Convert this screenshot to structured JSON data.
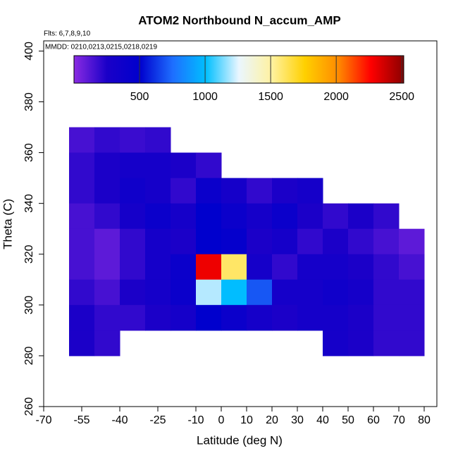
{
  "chart_data": {
    "type": "heatmap",
    "title": "ATOM2 Northbound N_accum_AMP",
    "subtitle": "Flts: 6,7,8,9,10",
    "annotation": "MMDD: 0210,0213,0215,0218,0219",
    "x_label": "Latitude (deg N)",
    "y_label": "Theta (C)",
    "x": [
      -55,
      -45,
      -35,
      -25,
      -15,
      -5,
      5,
      15,
      25,
      35,
      45,
      55,
      65,
      75
    ],
    "y": [
      365,
      355,
      345,
      335,
      325,
      315,
      305,
      295,
      285
    ],
    "z": [
      [
        150,
        200,
        180,
        200,
        null,
        null,
        null,
        null,
        null,
        null,
        null,
        null,
        null,
        null
      ],
      [
        200,
        250,
        300,
        300,
        250,
        200,
        null,
        null,
        null,
        null,
        null,
        null,
        null,
        null
      ],
      [
        200,
        250,
        350,
        300,
        200,
        400,
        300,
        200,
        250,
        300,
        null,
        null,
        null,
        null
      ],
      [
        150,
        200,
        300,
        400,
        300,
        500,
        400,
        300,
        400,
        250,
        200,
        250,
        200,
        null
      ],
      [
        150,
        100,
        200,
        300,
        250,
        500,
        450,
        250,
        300,
        200,
        250,
        200,
        150,
        100
      ],
      [
        150,
        100,
        200,
        300,
        400,
        2300,
        1600,
        300,
        200,
        300,
        300,
        250,
        200,
        150
      ],
      [
        200,
        150,
        250,
        300,
        400,
        1200,
        1000,
        700,
        300,
        300,
        350,
        300,
        200,
        200
      ],
      [
        250,
        200,
        200,
        250,
        300,
        500,
        400,
        300,
        250,
        300,
        300,
        250,
        200,
        200
      ],
      [
        250,
        200,
        null,
        null,
        null,
        null,
        null,
        null,
        null,
        null,
        300,
        250,
        200,
        200
      ]
    ],
    "xlim": [
      -70,
      85
    ],
    "ylim": [
      260,
      404
    ],
    "xticks": [
      -70,
      -55,
      -40,
      -25,
      -10,
      0,
      10,
      20,
      30,
      40,
      50,
      60,
      70,
      80
    ],
    "yticks": [
      260,
      280,
      300,
      320,
      340,
      360,
      380,
      400
    ],
    "zlim": [
      0,
      2515
    ],
    "zticks": [
      500,
      1000,
      1500,
      2000,
      2500
    ],
    "colorscale": [
      "#8a2be2",
      "#1a00c8",
      "#0000cd",
      "#1e6fff",
      "#00bfff",
      "#eaf6ff",
      "#fff2a0",
      "#ffd000",
      "#ff8c00",
      "#ff0000",
      "#8b0000"
    ]
  }
}
